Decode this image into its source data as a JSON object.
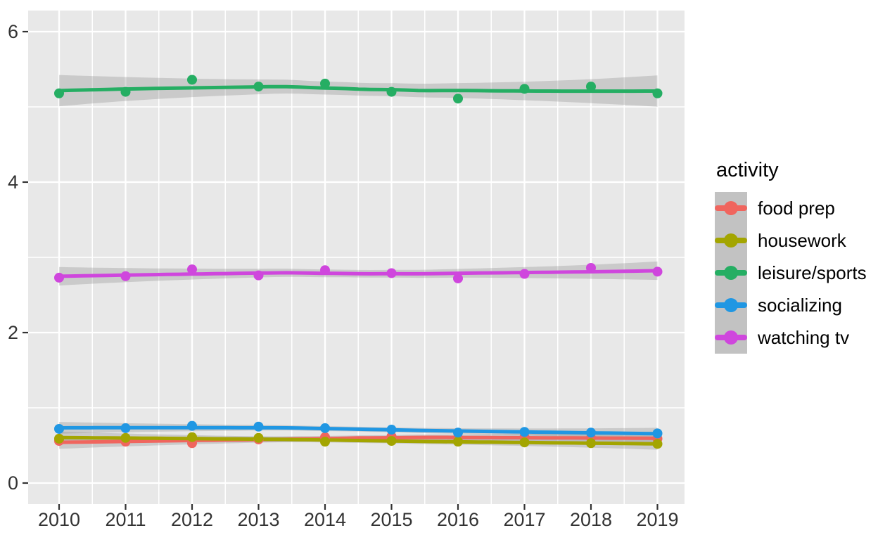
{
  "chart_data": {
    "type": "line",
    "title": "",
    "xlabel": "",
    "ylabel": "",
    "legend_title": "activity",
    "legend_position": "right",
    "grid": true,
    "smoother": "loess with gray confidence ribbon",
    "x": [
      2010,
      2011,
      2012,
      2013,
      2014,
      2015,
      2016,
      2017,
      2018,
      2019
    ],
    "x_tick_labels": [
      "2010",
      "2011",
      "2012",
      "2013",
      "2014",
      "2015",
      "2016",
      "2017",
      "2018",
      "2019"
    ],
    "y_ticks": [
      0,
      2,
      4,
      6
    ],
    "y_tick_labels": [
      "0",
      "2",
      "4",
      "6"
    ],
    "y_minor_ticks": [
      1,
      3,
      5
    ],
    "x_minor_ticks": [
      2010.5,
      2011.5,
      2012.5,
      2013.5,
      2014.5,
      2015.5,
      2016.5,
      2017.5,
      2018.5
    ],
    "ylim": [
      -0.28,
      6.28
    ],
    "xlim": [
      2009.53,
      2019.41
    ],
    "series": [
      {
        "name": "food prep",
        "color": "#F0655E",
        "band_halfwidth": 0.035,
        "values": [
          0.56,
          0.55,
          0.53,
          0.58,
          0.61,
          0.62,
          0.6,
          0.61,
          0.6,
          0.59
        ]
      },
      {
        "name": "housework",
        "color": "#A3A500",
        "band_halfwidth": 0.032,
        "values": [
          0.59,
          0.6,
          0.61,
          0.6,
          0.55,
          0.56,
          0.55,
          0.54,
          0.53,
          0.52
        ]
      },
      {
        "name": "leisure/sports",
        "color": "#25AE63",
        "band_halfwidth": 0.085,
        "values": [
          5.18,
          5.2,
          5.36,
          5.27,
          5.31,
          5.2,
          5.11,
          5.24,
          5.27,
          5.18
        ]
      },
      {
        "name": "socializing",
        "color": "#2097E3",
        "band_halfwidth": 0.032,
        "values": [
          0.72,
          0.73,
          0.76,
          0.75,
          0.73,
          0.71,
          0.67,
          0.68,
          0.67,
          0.66
        ]
      },
      {
        "name": "watching tv",
        "color": "#CF46DD",
        "band_halfwidth": 0.05,
        "values": [
          2.73,
          2.75,
          2.84,
          2.76,
          2.83,
          2.79,
          2.72,
          2.78,
          2.86,
          2.81
        ]
      }
    ],
    "theme": {
      "panel_background": "#E8E8E8",
      "grid_color": "#FFFFFF",
      "ribbon_color": "#8C8C8C",
      "ribbon_opacity": 0.32,
      "axis_text_color": "#333333",
      "tick_mark_color": "#333333",
      "legend_key_background": "#C2C2C2",
      "plot_background": "#FFFFFF"
    }
  }
}
